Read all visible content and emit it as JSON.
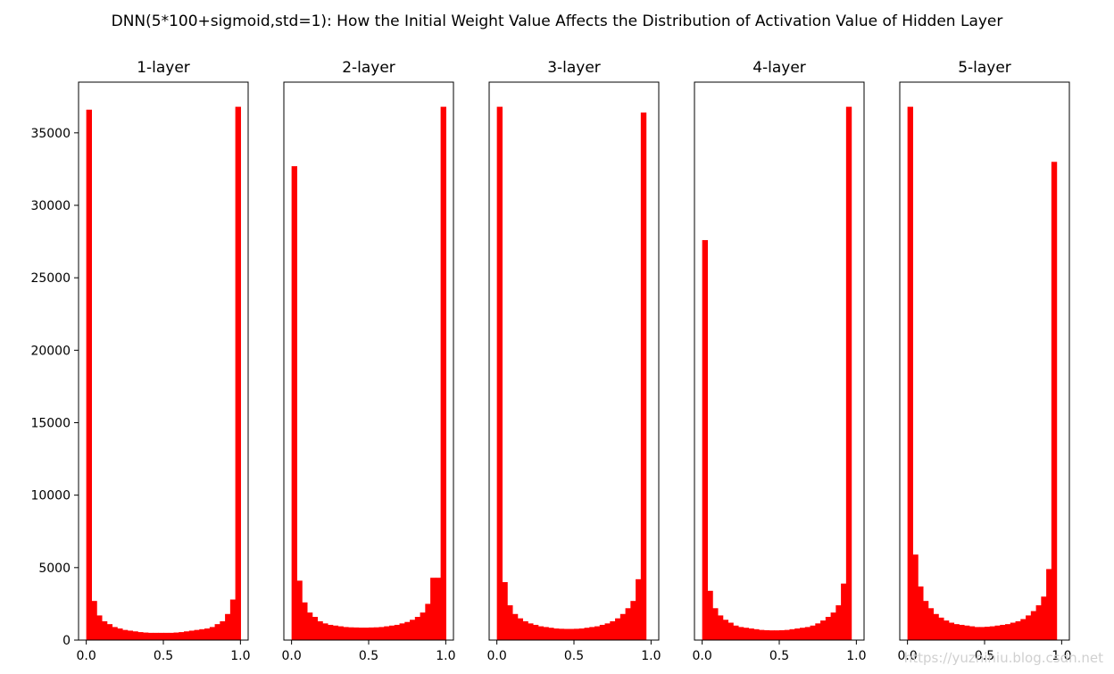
{
  "chart_data": {
    "type": "bar",
    "subtype": "histogram",
    "title": "DNN(5*100+sigmoid,std=1): How the Initial Weight Value Affects the Distribution of Activation Value of Hidden Layer",
    "bar_color": "#ff0000",
    "bins": 30,
    "xlim": [
      -0.05,
      1.05
    ],
    "ylim": [
      0,
      38500
    ],
    "xticks": [
      "0.0",
      "0.5",
      "1.0"
    ],
    "yticks": [
      "0",
      "5000",
      "10000",
      "15000",
      "20000",
      "25000",
      "30000",
      "35000"
    ],
    "shared_y_axis": true,
    "grid": false,
    "watermark": "https://yuzhiniu.blog.csdn.net",
    "panels": [
      {
        "title": "1-layer",
        "values": [
          36600,
          2700,
          1700,
          1300,
          1100,
          900,
          800,
          700,
          650,
          600,
          550,
          520,
          500,
          500,
          500,
          500,
          500,
          520,
          550,
          600,
          650,
          700,
          750,
          800,
          900,
          1100,
          1300,
          1800,
          2800,
          36800
        ]
      },
      {
        "title": "2-layer",
        "values": [
          32700,
          4100,
          2600,
          1900,
          1600,
          1300,
          1150,
          1050,
          1000,
          950,
          900,
          880,
          870,
          860,
          860,
          870,
          880,
          900,
          950,
          1000,
          1050,
          1150,
          1250,
          1400,
          1600,
          1900,
          2500,
          4300,
          4300,
          36800
        ]
      },
      {
        "title": "3-layer",
        "values": [
          36800,
          4000,
          2400,
          1800,
          1500,
          1300,
          1150,
          1050,
          950,
          900,
          850,
          800,
          780,
          770,
          770,
          780,
          800,
          850,
          900,
          950,
          1050,
          1150,
          1300,
          1500,
          1800,
          2200,
          2700,
          4200,
          36400,
          0
        ]
      },
      {
        "title": "4-layer",
        "values": [
          27600,
          3400,
          2200,
          1700,
          1400,
          1200,
          1000,
          900,
          850,
          800,
          750,
          700,
          680,
          670,
          670,
          680,
          700,
          750,
          800,
          850,
          900,
          1000,
          1150,
          1350,
          1600,
          1900,
          2400,
          3900,
          36800,
          0
        ]
      },
      {
        "title": "5-layer",
        "values": [
          36800,
          5900,
          3700,
          2700,
          2200,
          1800,
          1550,
          1350,
          1200,
          1100,
          1050,
          1000,
          950,
          900,
          900,
          920,
          950,
          1000,
          1050,
          1100,
          1200,
          1300,
          1450,
          1700,
          2000,
          2400,
          3000,
          4900,
          33000,
          0
        ]
      }
    ]
  }
}
